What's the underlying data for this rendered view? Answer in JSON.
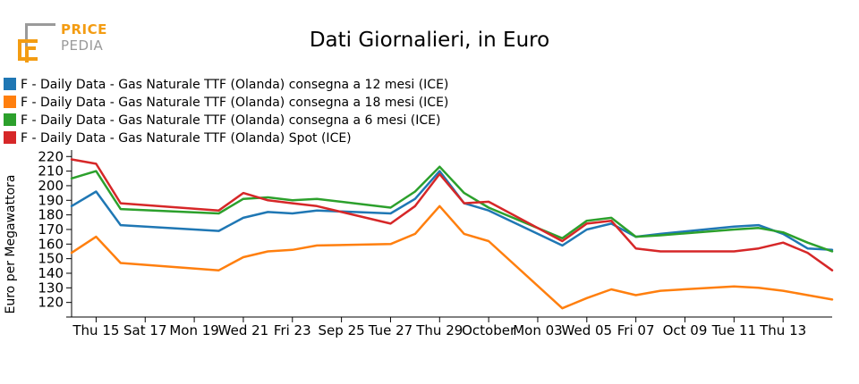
{
  "brand": {
    "line1": "PRICE",
    "line2": "PEDIA"
  },
  "colors": {
    "series_12m": "#1f77b4",
    "series_18m": "#ff7f0e",
    "series_6m": "#2ca02c",
    "series_spot": "#d62728",
    "axis": "#000000",
    "logo_orange": "#f39c12",
    "logo_grey": "#9a9a9a"
  },
  "chart_data": {
    "type": "line",
    "title": "Dati Giornalieri, in Euro",
    "xlabel": "",
    "ylabel": "Euro per Megawattora",
    "ylim": [
      110,
      222
    ],
    "yticks": [
      120,
      130,
      140,
      150,
      160,
      170,
      180,
      190,
      200,
      210,
      220
    ],
    "x_dates": [
      "2021-09-14",
      "2021-09-15",
      "2021-09-16",
      "2021-09-20",
      "2021-09-21",
      "2021-09-22",
      "2021-09-23",
      "2021-09-24",
      "2021-09-27",
      "2021-09-28",
      "2021-09-29",
      "2021-09-30",
      "2021-10-01",
      "2021-10-04",
      "2021-10-05",
      "2021-10-06",
      "2021-10-07",
      "2021-10-08",
      "2021-10-11",
      "2021-10-12",
      "2021-10-13",
      "2021-10-14",
      "2021-10-15"
    ],
    "xticks": [
      {
        "date": "2021-09-15",
        "label": "Thu 15"
      },
      {
        "date": "2021-09-17",
        "label": "Sat 17"
      },
      {
        "date": "2021-09-19",
        "label": "Mon 19"
      },
      {
        "date": "2021-09-21",
        "label": "Wed 21"
      },
      {
        "date": "2021-09-23",
        "label": "Fri 23"
      },
      {
        "date": "2021-09-25",
        "label": "Sep 25"
      },
      {
        "date": "2021-09-27",
        "label": "Tue 27"
      },
      {
        "date": "2021-09-29",
        "label": "Thu 29"
      },
      {
        "date": "2021-10-01",
        "label": "October"
      },
      {
        "date": "2021-10-03",
        "label": "Mon 03"
      },
      {
        "date": "2021-10-05",
        "label": "Wed 05"
      },
      {
        "date": "2021-10-07",
        "label": "Fri 07"
      },
      {
        "date": "2021-10-09",
        "label": "Oct 09"
      },
      {
        "date": "2021-10-11",
        "label": "Tue 11"
      },
      {
        "date": "2021-10-13",
        "label": "Thu 13"
      }
    ],
    "series": [
      {
        "name": "F - Daily Data - Gas Naturale TTF (Olanda) consegna a 12 mesi (ICE)",
        "color_key": "series_12m",
        "values": [
          186,
          196,
          173,
          169,
          178,
          182,
          181,
          183,
          181,
          191,
          210,
          188,
          183,
          159,
          170,
          174,
          165,
          167,
          172,
          173,
          167,
          157,
          156
        ]
      },
      {
        "name": "F - Daily Data - Gas Naturale TTF (Olanda) consegna a 18 mesi (ICE)",
        "color_key": "series_18m",
        "values": [
          154,
          165,
          147,
          142,
          151,
          155,
          156,
          159,
          160,
          167,
          186,
          167,
          162,
          116,
          123,
          129,
          125,
          128,
          131,
          130,
          128,
          125,
          122
        ]
      },
      {
        "name": "F - Daily Data - Gas Naturale TTF (Olanda) consegna a 6 mesi (ICE)",
        "color_key": "series_6m",
        "values": [
          205,
          210,
          184,
          181,
          191,
          192,
          190,
          191,
          185,
          196,
          213,
          195,
          185,
          164,
          176,
          178,
          165,
          166,
          170,
          171,
          168,
          161,
          155
        ]
      },
      {
        "name": "F - Daily Data - Gas Naturale TTF (Olanda) Spot (ICE)",
        "color_key": "series_spot",
        "values": [
          218,
          215,
          188,
          183,
          195,
          190,
          188,
          186,
          174,
          186,
          208,
          188,
          189,
          162,
          174,
          176,
          157,
          155,
          155,
          157,
          161,
          154,
          142
        ]
      }
    ]
  }
}
